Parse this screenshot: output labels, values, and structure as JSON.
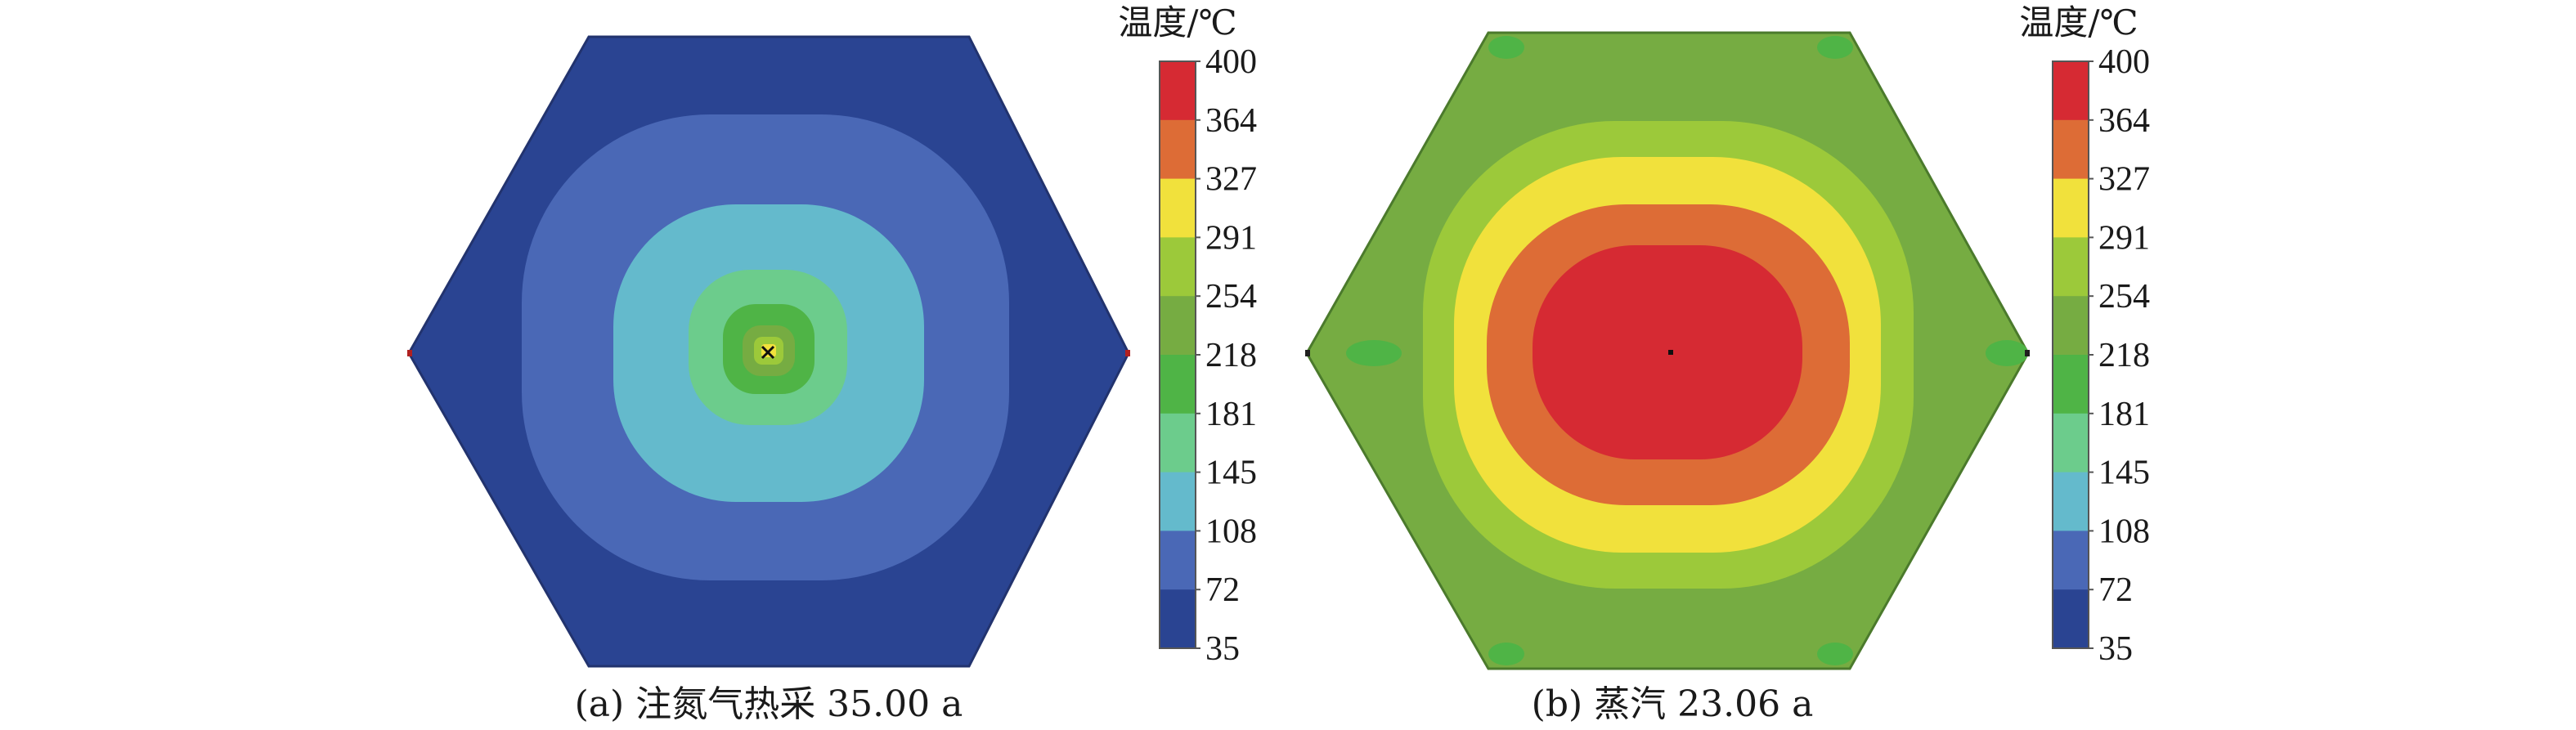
{
  "chart_data": [
    {
      "type": "heatmap",
      "caption": "(a) 注氮气热采 35.00 a",
      "colorbar_title": "温度/℃",
      "colorbar_ticks": [
        "400",
        "364",
        "327",
        "291",
        "254",
        "218",
        "181",
        "145",
        "108",
        "72",
        "35"
      ],
      "grid": false
    },
    {
      "type": "heatmap",
      "caption": "(b) 蒸汽 23.06 a",
      "colorbar_title": "温度/℃",
      "colorbar_ticks": [
        "400",
        "364",
        "327",
        "291",
        "254",
        "218",
        "181",
        "145",
        "108",
        "72",
        "35"
      ],
      "grid": false
    }
  ],
  "colors": {
    "bands_low_to_high": [
      "#2a4492",
      "#4a68b6",
      "#64bacc",
      "#6ccc8c",
      "#4fb446",
      "#76ac42",
      "#9cc93a",
      "#f1e13c",
      "#dd6c36",
      "#d62a33"
    ],
    "outline": "#101010"
  }
}
